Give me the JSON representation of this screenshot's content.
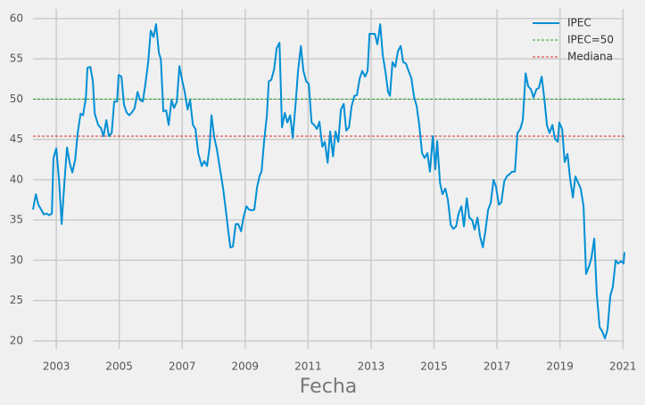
{
  "chart_data": {
    "type": "line",
    "x_label": "Fecha",
    "x": [
      2002.26,
      2002.35,
      2002.43,
      2002.52,
      2002.6,
      2002.69,
      2002.77,
      2002.86,
      2002.91,
      2003.0,
      2003.09,
      2003.17,
      2003.26,
      2003.34,
      2003.43,
      2003.51,
      2003.6,
      2003.68,
      2003.77,
      2003.85,
      2003.94,
      2003.99,
      2004.08,
      2004.16,
      2004.22,
      2004.33,
      2004.42,
      2004.5,
      2004.59,
      2004.67,
      2004.76,
      2004.84,
      2004.93,
      2004.98,
      2005.07,
      2005.15,
      2005.24,
      2005.32,
      2005.41,
      2005.49,
      2005.58,
      2005.66,
      2005.75,
      2005.83,
      2005.92,
      2006.0,
      2006.09,
      2006.17,
      2006.26,
      2006.32,
      2006.4,
      2006.49,
      2006.57,
      2006.66,
      2006.74,
      2006.83,
      2006.91,
      2007.0,
      2007.08,
      2007.17,
      2007.25,
      2007.34,
      2007.42,
      2007.51,
      2007.62,
      2007.7,
      2007.79,
      2007.87,
      2007.93,
      2008.02,
      2008.1,
      2008.19,
      2008.3,
      2008.38,
      2008.47,
      2008.53,
      2008.61,
      2008.7,
      2008.78,
      2008.87,
      2008.95,
      2009.04,
      2009.12,
      2009.21,
      2009.29,
      2009.38,
      2009.46,
      2009.52,
      2009.6,
      2009.69,
      2009.75,
      2009.83,
      2009.92,
      2010.0,
      2010.09,
      2010.17,
      2010.26,
      2010.34,
      2010.43,
      2010.51,
      2010.6,
      2010.68,
      2010.77,
      2010.85,
      2010.94,
      2011.02,
      2011.11,
      2011.19,
      2011.28,
      2011.36,
      2011.45,
      2011.53,
      2011.62,
      2011.7,
      2011.79,
      2011.87,
      2011.96,
      2012.04,
      2012.13,
      2012.21,
      2012.3,
      2012.38,
      2012.47,
      2012.55,
      2012.64,
      2012.72,
      2012.81,
      2012.89,
      2012.95,
      2013.03,
      2013.12,
      2013.2,
      2013.29,
      2013.37,
      2013.46,
      2013.54,
      2013.6,
      2013.68,
      2013.77,
      2013.85,
      2013.94,
      2014.02,
      2014.11,
      2014.19,
      2014.28,
      2014.36,
      2014.45,
      2014.53,
      2014.62,
      2014.7,
      2014.79,
      2014.87,
      2014.96,
      2015.04,
      2015.1,
      2015.19,
      2015.27,
      2015.36,
      2015.44,
      2015.53,
      2015.61,
      2015.7,
      2015.78,
      2015.87,
      2015.95,
      2016.04,
      2016.12,
      2016.21,
      2016.29,
      2016.38,
      2016.46,
      2016.55,
      2016.63,
      2016.72,
      2016.8,
      2016.89,
      2016.97,
      2017.06,
      2017.14,
      2017.23,
      2017.31,
      2017.4,
      2017.48,
      2017.57,
      2017.65,
      2017.74,
      2017.82,
      2017.91,
      2017.99,
      2018.08,
      2018.16,
      2018.25,
      2018.33,
      2018.42,
      2018.5,
      2018.59,
      2018.67,
      2018.76,
      2018.84,
      2018.93,
      2018.98,
      2019.07,
      2019.15,
      2019.24,
      2019.32,
      2019.41,
      2019.49,
      2019.58,
      2019.66,
      2019.75,
      2019.83,
      2019.92,
      2020.0,
      2020.09,
      2020.17,
      2020.26,
      2020.34,
      2020.43,
      2020.51,
      2020.6,
      2020.68,
      2020.77,
      2020.85,
      2020.94,
      2021.02,
      2021.05
    ],
    "series": [
      {
        "name": "IPEC",
        "color": "#008fd5",
        "values": [
          36.3,
          38.2,
          36.9,
          36.3,
          35.7,
          35.8,
          35.6,
          35.8,
          42.7,
          43.9,
          39.8,
          34.5,
          39.8,
          44.0,
          42.0,
          40.9,
          42.5,
          45.8,
          48.2,
          48.0,
          50.2,
          53.9,
          54.0,
          52.3,
          48.2,
          46.8,
          46.4,
          45.4,
          47.4,
          45.4,
          45.8,
          49.7,
          49.7,
          53.0,
          52.8,
          49.3,
          48.3,
          48.0,
          48.4,
          48.9,
          50.9,
          49.9,
          49.7,
          51.9,
          54.6,
          58.5,
          57.7,
          59.3,
          55.7,
          55.0,
          48.5,
          48.6,
          46.8,
          49.9,
          48.9,
          49.7,
          54.1,
          52.3,
          50.9,
          48.7,
          49.9,
          46.8,
          46.3,
          43.3,
          41.7,
          42.3,
          41.7,
          44.1,
          48.0,
          45.2,
          43.8,
          41.6,
          38.9,
          36.4,
          33.4,
          31.6,
          31.7,
          34.5,
          34.5,
          33.6,
          35.4,
          36.7,
          36.3,
          36.2,
          36.3,
          39.1,
          40.5,
          41.0,
          44.7,
          48.0,
          52.2,
          52.4,
          53.7,
          56.3,
          57.0,
          46.5,
          48.3,
          47.1,
          48.0,
          45.2,
          49.3,
          53.5,
          56.6,
          53.5,
          52.2,
          51.9,
          47.1,
          46.8,
          46.3,
          47.2,
          44.1,
          44.7,
          42.1,
          46.0,
          42.9,
          46.0,
          44.7,
          48.7,
          49.4,
          46.1,
          46.5,
          49.1,
          50.4,
          50.5,
          52.6,
          53.5,
          52.8,
          53.5,
          58.1,
          58.1,
          58.1,
          56.8,
          59.3,
          55.5,
          53.3,
          50.9,
          50.4,
          54.6,
          54.0,
          55.9,
          56.6,
          54.6,
          54.4,
          53.5,
          52.6,
          50.4,
          49.1,
          46.8,
          43.3,
          42.7,
          43.3,
          41.0,
          45.4,
          41.3,
          44.8,
          39.6,
          38.2,
          38.9,
          37.5,
          34.4,
          33.9,
          34.2,
          35.8,
          36.7,
          34.2,
          37.7,
          35.3,
          35.0,
          33.8,
          35.3,
          33.0,
          31.6,
          33.6,
          36.3,
          37.1,
          40.0,
          39.1,
          36.9,
          37.2,
          39.8,
          40.4,
          40.7,
          41.0,
          41.0,
          45.8,
          46.3,
          47.4,
          53.2,
          51.6,
          51.2,
          50.2,
          51.2,
          51.4,
          52.8,
          50.2,
          46.7,
          45.8,
          46.8,
          45.1,
          44.7,
          47.1,
          46.3,
          42.2,
          43.2,
          40.2,
          37.8,
          40.4,
          39.6,
          38.9,
          36.7,
          28.3,
          29.2,
          30.3,
          32.7,
          25.8,
          21.7,
          21.2,
          20.3,
          21.4,
          25.6,
          26.7,
          30.0,
          29.6,
          29.9,
          29.6,
          31.0
        ]
      }
    ],
    "hlines": [
      {
        "name": "IPEC=50",
        "color": "#2ca02c",
        "value": 50
      },
      {
        "name": "Mediana",
        "color": "#d62728",
        "value": 45.4
      }
    ],
    "xlim": [
      2002.26,
      2021.05
    ],
    "xticks": [
      2003,
      2005,
      2007,
      2009,
      2011,
      2013,
      2015,
      2017,
      2019,
      2021
    ],
    "ylim": [
      19,
      61.2
    ],
    "yticks": [
      20,
      25,
      30,
      35,
      40,
      45,
      50,
      55,
      60
    ],
    "grid": true,
    "legend": "upper right"
  }
}
